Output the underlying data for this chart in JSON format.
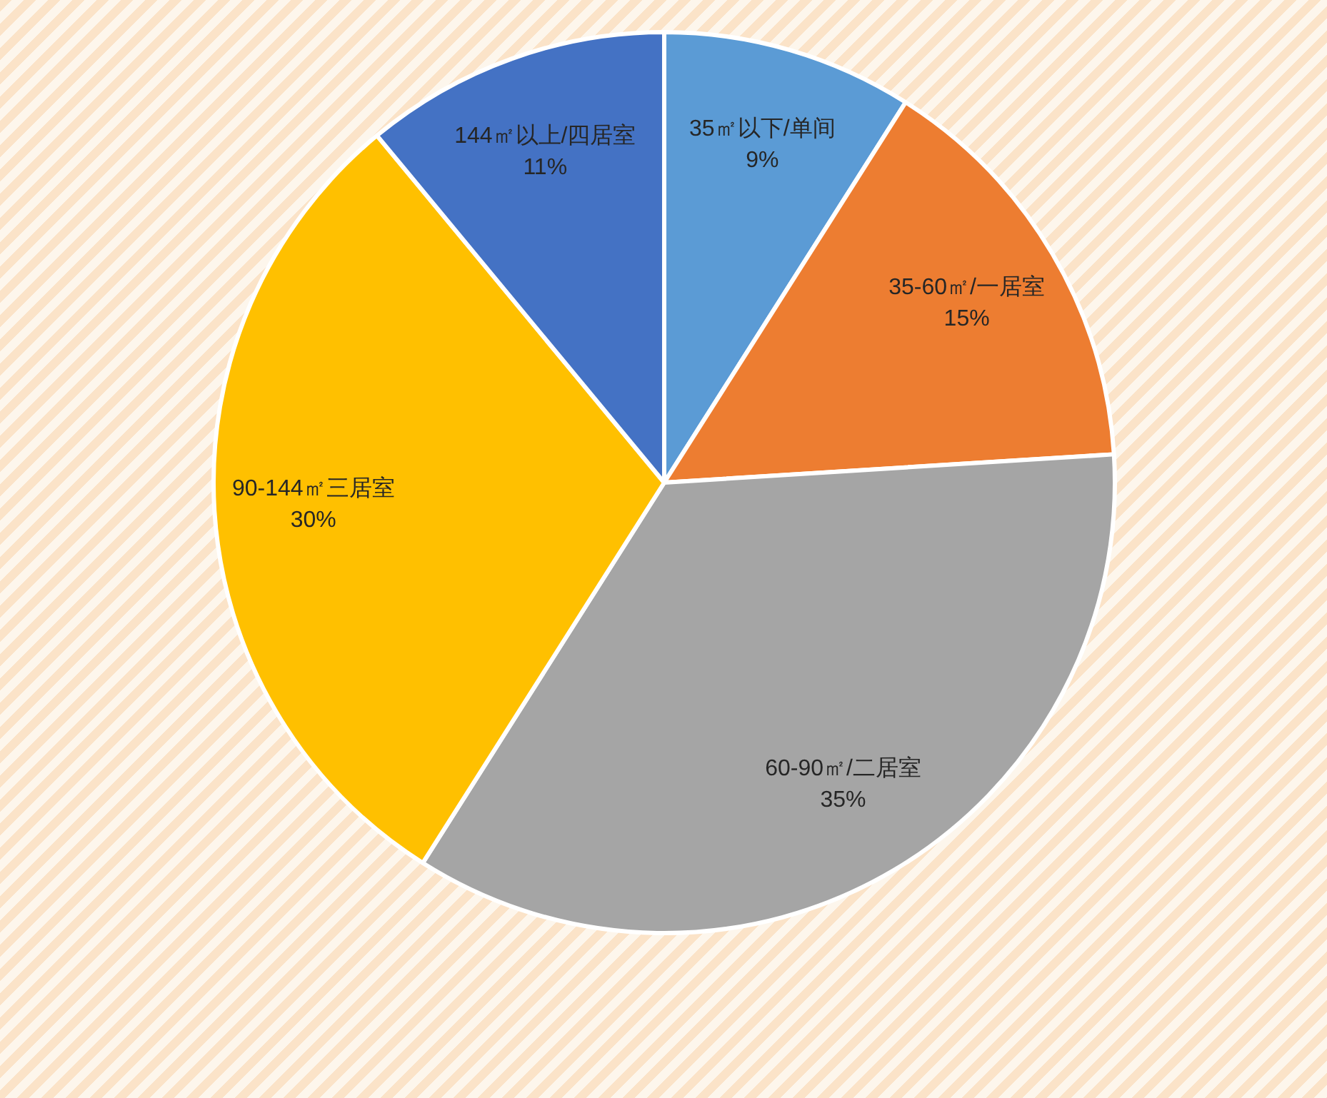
{
  "chart_data": {
    "type": "pie",
    "categories": [
      "35㎡以下/单间",
      "35-60㎡/一居室",
      "60-90㎡/二居室",
      "90-144㎡三居室",
      "144㎡以上/四居室"
    ],
    "values": [
      9,
      15,
      35,
      30,
      11
    ],
    "value_labels": [
      "9%",
      "15%",
      "35%",
      "30%",
      "11%"
    ],
    "colors": [
      "#5b9bd5",
      "#ed7d31",
      "#a5a5a5",
      "#ffc000",
      "#4472c4"
    ]
  }
}
